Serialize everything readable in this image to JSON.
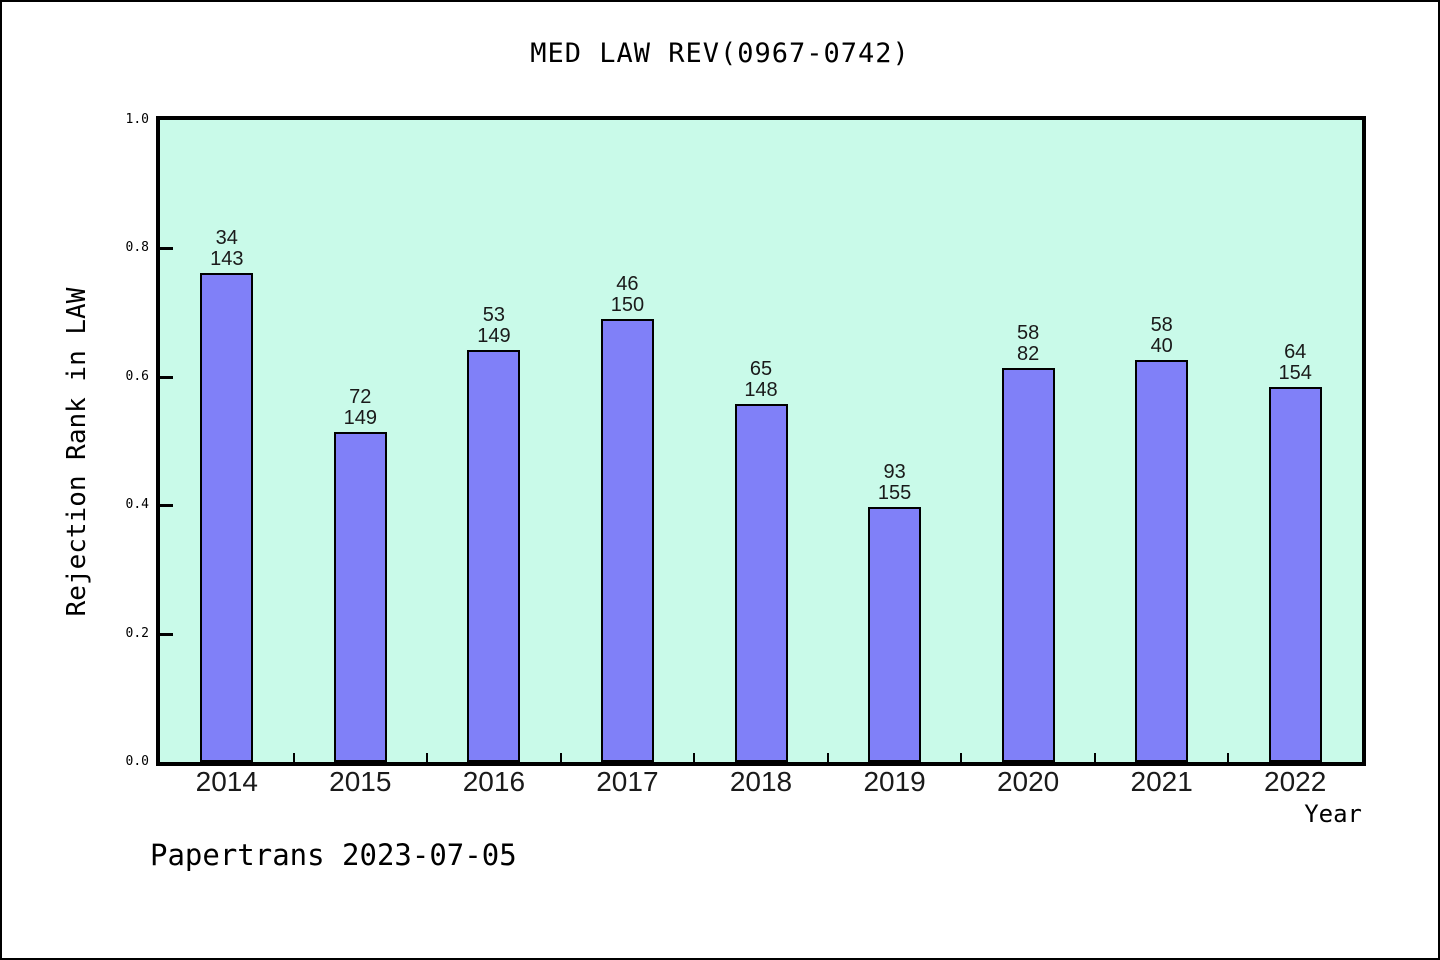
{
  "page": {
    "footer_text": "Papertrans 2023-07-05"
  },
  "chart_data": {
    "type": "bar",
    "title": "MED LAW REV(0967-0742)",
    "xlabel": "Year",
    "ylabel": "Rejection Rank in LAW",
    "ylim": [
      0.0,
      1.0
    ],
    "yticks": [
      "0.0",
      "0.2",
      "0.4",
      "0.6",
      "0.8",
      "1.0"
    ],
    "grid": false,
    "legend": null,
    "categories": [
      "2014",
      "2015",
      "2016",
      "2017",
      "2018",
      "2019",
      "2020",
      "2021",
      "2022"
    ],
    "values": [
      0.762,
      0.514,
      0.642,
      0.69,
      0.558,
      0.397,
      0.614,
      0.626,
      0.584
    ],
    "series": [
      {
        "name": "rank-label-top",
        "values": [
          34,
          72,
          53,
          46,
          65,
          93,
          58,
          58,
          64
        ]
      },
      {
        "name": "rank-label-bottom",
        "values": [
          143,
          149,
          149,
          150,
          148,
          155,
          82,
          40,
          154
        ]
      }
    ],
    "bar_labels": [
      [
        "34",
        "143"
      ],
      [
        "72",
        "149"
      ],
      [
        "53",
        "149"
      ],
      [
        "46",
        "150"
      ],
      [
        "65",
        "148"
      ],
      [
        "93",
        "155"
      ],
      [
        "58",
        "82"
      ],
      [
        "58",
        "40"
      ],
      [
        "64",
        "154"
      ]
    ],
    "colors": {
      "bar_fill": "#8080f8",
      "bar_border": "#000000",
      "plot_bg": "#c9fae9",
      "frame": "#000000",
      "text": "#000000"
    }
  }
}
